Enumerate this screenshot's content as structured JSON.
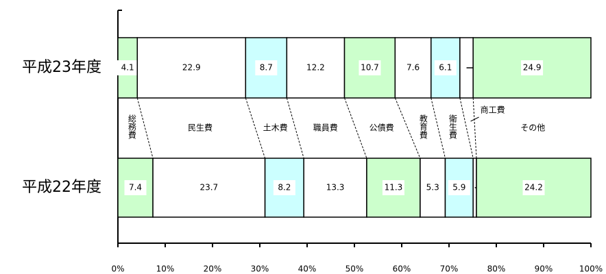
{
  "chart_data": {
    "type": "bar",
    "orientation": "horizontal",
    "stacked": true,
    "categories": [
      "平成23年度",
      "平成22年度"
    ],
    "series": [
      {
        "name": "総務費",
        "color": "#ccffcc",
        "values": [
          4.1,
          7.4
        ]
      },
      {
        "name": "民生費",
        "color": "#ffffff",
        "values": [
          22.9,
          23.7
        ]
      },
      {
        "name": "土木費",
        "color": "#ccffff",
        "values": [
          8.7,
          8.2
        ]
      },
      {
        "name": "職員費",
        "color": "#ffffff",
        "values": [
          12.2,
          13.3
        ]
      },
      {
        "name": "公債費",
        "color": "#ccffcc",
        "values": [
          10.7,
          11.3
        ]
      },
      {
        "name": "教育費",
        "color": "#ffffff",
        "values": [
          7.6,
          5.3
        ]
      },
      {
        "name": "衛生費",
        "color": "#ccffff",
        "values": [
          6.1,
          5.9
        ]
      },
      {
        "name": "商工費",
        "color": "#ffffff",
        "values": [
          2.8,
          0.7
        ]
      },
      {
        "name": "その他",
        "color": "#ccffcc",
        "values": [
          24.9,
          24.2
        ]
      }
    ],
    "xlim": [
      0,
      100
    ],
    "xticks": [
      {
        "value": 0,
        "label": "0%"
      },
      {
        "value": 10,
        "label": "10%"
      },
      {
        "value": 20,
        "label": "20%"
      },
      {
        "value": 30,
        "label": "30%"
      },
      {
        "value": 40,
        "label": "40%"
      },
      {
        "value": 50,
        "label": "50%"
      },
      {
        "value": 60,
        "label": "60%"
      },
      {
        "value": 70,
        "label": "70%"
      },
      {
        "value": 80,
        "label": "80%"
      },
      {
        "value": 90,
        "label": "90%"
      },
      {
        "value": 100,
        "label": "100%"
      }
    ]
  }
}
